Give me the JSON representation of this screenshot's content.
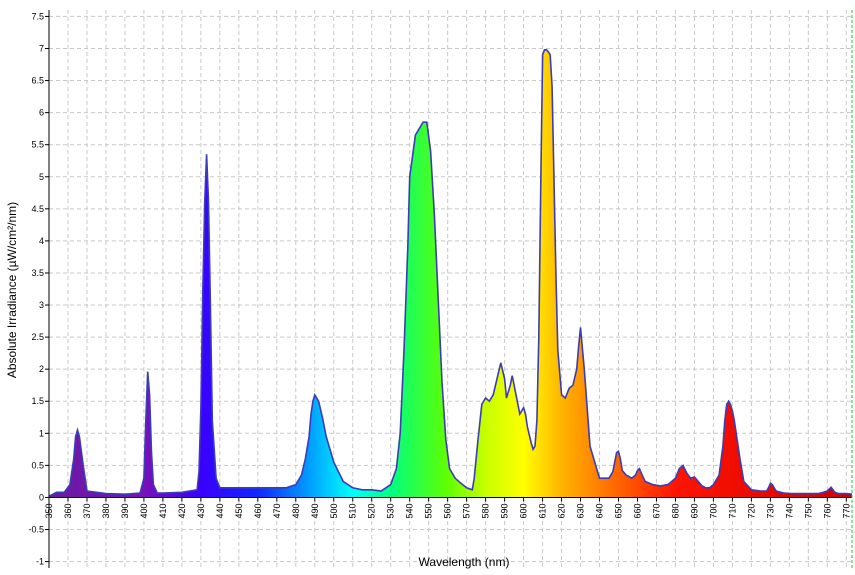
{
  "chart_data": {
    "type": "area",
    "title": "",
    "xlabel": "Wavelength (nm)",
    "ylabel": "Absolute Irradiance (µW/cm²/nm)",
    "xlim": [
      350,
      773
    ],
    "ylim": [
      -1.1,
      7.6
    ],
    "x_ticks": [
      350,
      360,
      370,
      380,
      390,
      400,
      410,
      420,
      430,
      440,
      450,
      460,
      470,
      480,
      490,
      500,
      510,
      520,
      530,
      540,
      550,
      560,
      570,
      580,
      590,
      600,
      610,
      620,
      630,
      640,
      650,
      660,
      670,
      680,
      690,
      700,
      710,
      720,
      730,
      740,
      750,
      760,
      770
    ],
    "y_ticks": [
      -1,
      -0.5,
      0,
      0.5,
      1,
      1.5,
      2,
      2.5,
      3,
      3.5,
      4,
      4.5,
      5,
      5.5,
      6,
      6.5,
      7,
      7.5
    ],
    "grid": true,
    "fill": "rainbow-by-wavelength",
    "line_color": "#3c3cb4",
    "series": [
      {
        "x": [
          350,
          354,
          358,
          361,
          363,
          364,
          365,
          366,
          368,
          370,
          380,
          390,
          398,
          400,
          401,
          402,
          403,
          404,
          405,
          407,
          410,
          420,
          428,
          429,
          430,
          431,
          432,
          433,
          434,
          435,
          436,
          438,
          440,
          450,
          460,
          470,
          475,
          480,
          483,
          485,
          487,
          488,
          489,
          490,
          492,
          494,
          496,
          500,
          505,
          510,
          515,
          520,
          525,
          530,
          533,
          535,
          537,
          539,
          540,
          543,
          545,
          547,
          549,
          551,
          553,
          555,
          557,
          559,
          561,
          564,
          567,
          570,
          573,
          574,
          576,
          578,
          580,
          582,
          584,
          586,
          588,
          590,
          591,
          593,
          594,
          596,
          598,
          600,
          601,
          602,
          604,
          605,
          606,
          607,
          608,
          609,
          610,
          611,
          612,
          613,
          614,
          615,
          617,
          618,
          620,
          622,
          624,
          626,
          628,
          629,
          630,
          632,
          635,
          640,
          645,
          647,
          648,
          649,
          650,
          651,
          652,
          654,
          657,
          659,
          660,
          661,
          662,
          664,
          668,
          672,
          676,
          680,
          682,
          684,
          686,
          688,
          690,
          692,
          694,
          696,
          698,
          700,
          703,
          705,
          706,
          707,
          708,
          709,
          710,
          711,
          712,
          714,
          716,
          720,
          725,
          728,
          729,
          730,
          731,
          733,
          737,
          741,
          745,
          750,
          755,
          758,
          760,
          762,
          764,
          766,
          770,
          773
        ],
        "y": [
          0.02,
          0.08,
          0.08,
          0.2,
          0.6,
          0.95,
          1.05,
          0.95,
          0.5,
          0.1,
          0.06,
          0.05,
          0.07,
          0.3,
          1.2,
          1.96,
          1.6,
          0.7,
          0.2,
          0.07,
          0.07,
          0.08,
          0.12,
          0.4,
          1.4,
          3.2,
          4.6,
          5.35,
          4.6,
          3.0,
          1.2,
          0.3,
          0.15,
          0.15,
          0.15,
          0.15,
          0.15,
          0.2,
          0.35,
          0.6,
          0.95,
          1.3,
          1.5,
          1.6,
          1.5,
          1.25,
          0.95,
          0.55,
          0.25,
          0.15,
          0.12,
          0.12,
          0.1,
          0.2,
          0.45,
          1.0,
          2.3,
          3.9,
          5.0,
          5.65,
          5.75,
          5.85,
          5.85,
          5.4,
          4.4,
          3.1,
          1.8,
          0.9,
          0.45,
          0.3,
          0.22,
          0.15,
          0.12,
          0.3,
          0.9,
          1.45,
          1.55,
          1.5,
          1.6,
          1.85,
          2.1,
          1.85,
          1.55,
          1.75,
          1.9,
          1.6,
          1.3,
          1.4,
          1.3,
          1.1,
          0.85,
          0.75,
          0.8,
          1.2,
          2.5,
          4.8,
          6.9,
          6.98,
          6.98,
          6.95,
          6.9,
          6.4,
          3.5,
          2.3,
          1.6,
          1.55,
          1.7,
          1.75,
          2.0,
          2.35,
          2.65,
          2.0,
          0.8,
          0.3,
          0.3,
          0.4,
          0.55,
          0.7,
          0.72,
          0.6,
          0.42,
          0.35,
          0.3,
          0.35,
          0.42,
          0.45,
          0.38,
          0.25,
          0.2,
          0.18,
          0.2,
          0.3,
          0.45,
          0.5,
          0.38,
          0.3,
          0.32,
          0.25,
          0.18,
          0.15,
          0.15,
          0.2,
          0.35,
          0.8,
          1.2,
          1.45,
          1.5,
          1.45,
          1.35,
          1.2,
          1.0,
          0.6,
          0.25,
          0.12,
          0.1,
          0.1,
          0.15,
          0.22,
          0.2,
          0.1,
          0.07,
          0.06,
          0.06,
          0.06,
          0.06,
          0.08,
          0.1,
          0.16,
          0.08,
          0.06,
          0.06,
          0.05
        ]
      }
    ]
  }
}
